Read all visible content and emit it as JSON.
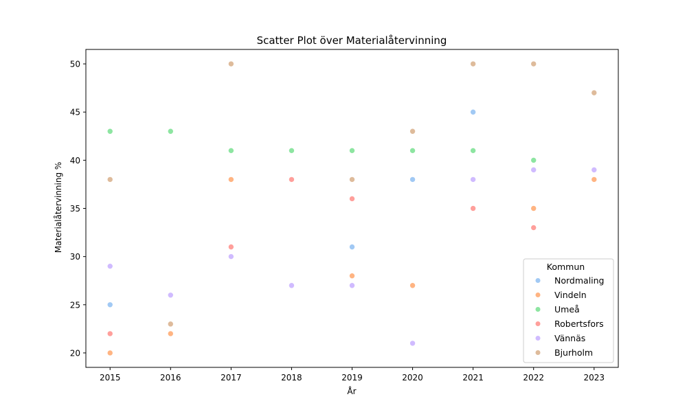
{
  "chart_data": {
    "type": "scatter",
    "title": "Scatter Plot över Materialåtervinning",
    "xlabel": "År",
    "ylabel": "Materialåtervinning %",
    "x_ticks": [
      "2015",
      "2016",
      "2017",
      "2018",
      "2019",
      "2020",
      "2021",
      "2022",
      "2023"
    ],
    "y_ticks": [
      "20",
      "25",
      "30",
      "35",
      "40",
      "45",
      "50"
    ],
    "xlim": [
      2014.6,
      2023.4
    ],
    "ylim": [
      18.5,
      51.5
    ],
    "grid": false,
    "legend": {
      "title": "Kommun",
      "placement": "lower-right"
    },
    "series": [
      {
        "name": "Nordmaling",
        "color": "#a1c9f4",
        "points": [
          [
            2015,
            25
          ],
          [
            2019,
            31
          ],
          [
            2020,
            38
          ],
          [
            2021,
            45
          ]
        ]
      },
      {
        "name": "Vindeln",
        "color": "#ffb482",
        "points": [
          [
            2015,
            20
          ],
          [
            2016,
            22
          ],
          [
            2017,
            38
          ],
          [
            2019,
            28
          ],
          [
            2020,
            27
          ],
          [
            2022,
            35
          ],
          [
            2023,
            38
          ]
        ]
      },
      {
        "name": "Umeå",
        "color": "#8de5a1",
        "points": [
          [
            2015,
            43
          ],
          [
            2016,
            43
          ],
          [
            2017,
            41
          ],
          [
            2018,
            41
          ],
          [
            2019,
            41
          ],
          [
            2020,
            41
          ],
          [
            2021,
            41
          ],
          [
            2022,
            40
          ]
        ]
      },
      {
        "name": "Robertsfors",
        "color": "#ff9f9b",
        "points": [
          [
            2015,
            22
          ],
          [
            2017,
            31
          ],
          [
            2018,
            38
          ],
          [
            2019,
            36
          ],
          [
            2021,
            35
          ],
          [
            2022,
            33
          ]
        ]
      },
      {
        "name": "Vännäs",
        "color": "#d0bbff",
        "points": [
          [
            2015,
            29
          ],
          [
            2016,
            26
          ],
          [
            2017,
            30
          ],
          [
            2018,
            27
          ],
          [
            2019,
            27
          ],
          [
            2020,
            21
          ],
          [
            2021,
            38
          ],
          [
            2022,
            39
          ],
          [
            2023,
            39
          ]
        ]
      },
      {
        "name": "Bjurholm",
        "color": "#debb9b",
        "points": [
          [
            2015,
            38
          ],
          [
            2016,
            23
          ],
          [
            2017,
            50
          ],
          [
            2019,
            38
          ],
          [
            2020,
            43
          ],
          [
            2021,
            50
          ],
          [
            2022,
            50
          ],
          [
            2023,
            47
          ]
        ]
      }
    ]
  }
}
